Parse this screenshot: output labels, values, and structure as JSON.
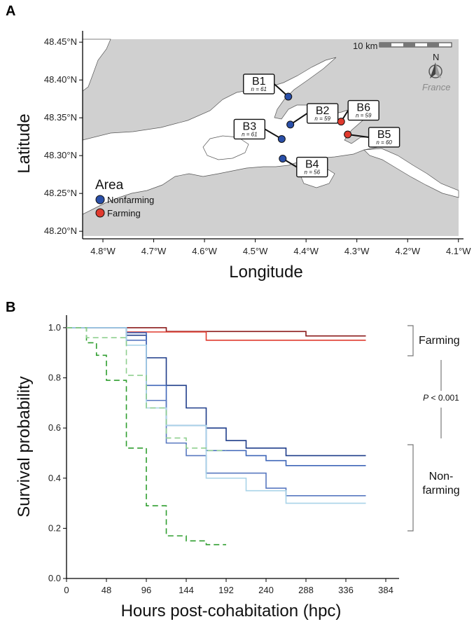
{
  "panel_a_label": "A",
  "panel_b_label": "B",
  "map": {
    "xlabel": "Longitude",
    "ylabel": "Latitude",
    "xticks": [
      "4.8°W",
      "4.7°W",
      "4.6°W",
      "4.5°W",
      "4.4°W",
      "4.3°W",
      "4.2°W",
      "4.1°W"
    ],
    "yticks": [
      "48.45°N",
      "48.40°N",
      "48.35°N",
      "48.30°N",
      "48.25°N",
      "48.20°N"
    ],
    "scale_bar": "10 km",
    "north": "N",
    "country": "France",
    "legend_title": "Area",
    "legend": [
      {
        "label": "Nonfarming",
        "color": "#2a4fa8"
      },
      {
        "label": "Farming",
        "color": "#e03a2e"
      }
    ],
    "sites": [
      {
        "name": "B1",
        "n_prefix": "n",
        "n": "= 61",
        "area": "Nonfarming",
        "lon": -4.435,
        "lat": 48.378
      },
      {
        "name": "B2",
        "n_prefix": "n",
        "n": "= 59",
        "area": "Nonfarming",
        "lon": -4.431,
        "lat": 48.341
      },
      {
        "name": "B3",
        "n_prefix": "n",
        "n": "= 61",
        "area": "Nonfarming",
        "lon": -4.448,
        "lat": 48.322
      },
      {
        "name": "B4",
        "n_prefix": "n",
        "n": "= 56",
        "area": "Nonfarming",
        "lon": -4.446,
        "lat": 48.296
      },
      {
        "name": "B5",
        "n_prefix": "n",
        "n": "= 60",
        "area": "Farming",
        "lon": -4.318,
        "lat": 48.328
      },
      {
        "name": "B6",
        "n_prefix": "n",
        "n": "= 59",
        "area": "Farming",
        "lon": -4.331,
        "lat": 48.345
      }
    ]
  },
  "chart_data": {
    "type": "line",
    "xlabel": "Hours post-cohabitation (hpc)",
    "ylabel": "Survival probability",
    "xlim": [
      0,
      400
    ],
    "ylim": [
      0,
      1.05
    ],
    "xticks": [
      0,
      48,
      96,
      144,
      192,
      240,
      288,
      336,
      384
    ],
    "yticks": [
      "0.0",
      "0.2",
      "0.4",
      "0.6",
      "0.8",
      "1.0"
    ],
    "series": [
      {
        "color": "#8b1a1a",
        "dashed": false,
        "x": [
          0,
          120,
          288,
          360
        ],
        "y": [
          1.0,
          0.985,
          0.967,
          0.967
        ]
      },
      {
        "color": "#e03a2e",
        "dashed": false,
        "x": [
          0,
          72,
          168,
          360
        ],
        "y": [
          1.0,
          0.983,
          0.95,
          0.95
        ]
      },
      {
        "color": "#1f3d8a",
        "dashed": false,
        "x": [
          0,
          72,
          96,
          120,
          144,
          168,
          192,
          216,
          264,
          360
        ],
        "y": [
          1.0,
          0.97,
          0.88,
          0.77,
          0.68,
          0.6,
          0.55,
          0.52,
          0.49,
          0.49
        ]
      },
      {
        "color": "#3f66b8",
        "dashed": false,
        "x": [
          0,
          72,
          96,
          120,
          168,
          216,
          240,
          264,
          360
        ],
        "y": [
          1.0,
          0.98,
          0.77,
          0.61,
          0.51,
          0.49,
          0.47,
          0.45,
          0.45
        ]
      },
      {
        "color": "#5878c0",
        "dashed": false,
        "x": [
          0,
          72,
          96,
          120,
          144,
          168,
          240,
          264,
          360
        ],
        "y": [
          1.0,
          0.95,
          0.71,
          0.54,
          0.49,
          0.42,
          0.36,
          0.33,
          0.33
        ]
      },
      {
        "color": "#a9d3e8",
        "dashed": false,
        "x": [
          0,
          72,
          96,
          120,
          168,
          216,
          264,
          360
        ],
        "y": [
          1.0,
          0.93,
          0.68,
          0.61,
          0.4,
          0.35,
          0.3,
          0.3
        ]
      },
      {
        "color": "#2f9e2f",
        "dashed": true,
        "x": [
          0,
          24,
          36,
          48,
          72,
          96,
          120,
          144,
          168,
          192
        ],
        "y": [
          1.0,
          0.94,
          0.89,
          0.79,
          0.52,
          0.29,
          0.17,
          0.15,
          0.135,
          0.135
        ]
      },
      {
        "color": "#8fcf8f",
        "dashed": true,
        "x": [
          0,
          24,
          72,
          96,
          120,
          144,
          168,
          192
        ],
        "y": [
          1.0,
          0.96,
          0.81,
          0.68,
          0.56,
          0.52,
          0.51,
          0.51
        ]
      }
    ],
    "annotations": {
      "farming": "Farming",
      "nonfarming_1": "Non-",
      "nonfarming_2": "farming",
      "p_italic": "P",
      "p_rest": " < 0.001"
    }
  }
}
